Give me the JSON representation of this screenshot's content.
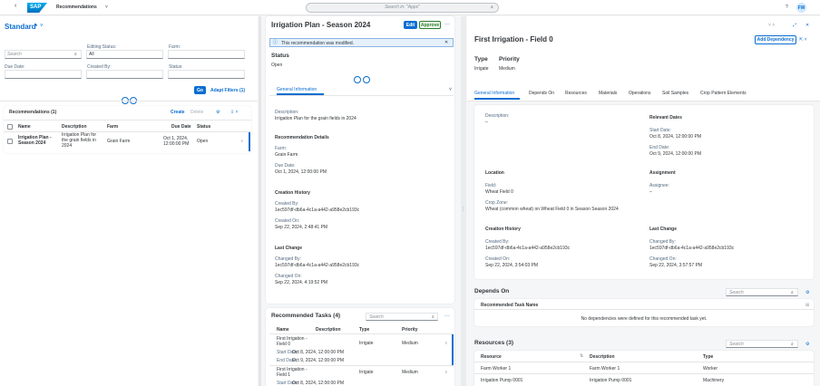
{
  "shell": {
    "app_title": "Recommendations",
    "search_placeholder": "Search in: \"Apps\"",
    "avatar": "FW"
  },
  "list_report": {
    "variant": "Standard",
    "variant_modified": "*",
    "search_placeholder": "Search",
    "filters": [
      {
        "label": "Editing Status:",
        "value": "All"
      },
      {
        "label": "Farm:"
      },
      {
        "label": "Due Date:"
      },
      {
        "label": "Created By:"
      },
      {
        "label": "Status:"
      }
    ],
    "go": "Go",
    "adapt_filters": "Adapt Filters (1)",
    "table": {
      "title": "Recommendations (1)",
      "actions": [
        "Create",
        "Delete"
      ],
      "columns": [
        "Name",
        "Description",
        "Farm",
        "Due Date",
        "Status"
      ],
      "rows": [
        [
          "Irrigation Plan - Season 2024",
          "Irrigation Plan for the grain fields in 2024",
          "Grain Farm",
          "Oct 1, 2024, 12:00:00 PM",
          "Open"
        ]
      ]
    }
  },
  "object_page": {
    "title": "Irrigation Plan - Season 2024",
    "actions": [
      "Edit",
      "Approve"
    ],
    "message": "This recommendation was modified.",
    "status_label": "Status",
    "status_value": "Open",
    "tab": "General Information",
    "description": {
      "label": "Description:",
      "value": "Irrigation Plan for the grain fields in 2024"
    },
    "sections": [
      {
        "title": "Recommendation Details",
        "fields": [
          {
            "label": "Farm:",
            "value": "Grain Farm"
          },
          {
            "label": "Due Date:",
            "value": "Oct 1, 2024, 12:00:00 PM"
          }
        ]
      },
      {
        "title": "Creation History",
        "fields": [
          {
            "label": "Created By:",
            "value": "1ec597df-db6a-4c1a-a442-a958e2cb193c"
          },
          {
            "label": "Created On:",
            "value": "Sep 22, 2024, 2:48:41 PM"
          }
        ]
      },
      {
        "title": "Last Change",
        "fields": [
          {
            "label": "Changed By:",
            "value": "1ec597df-db6a-4c1a-a442-a958e2cb193c"
          },
          {
            "label": "Changed On:",
            "value": "Sep 22, 2024, 4:19:52 PM"
          }
        ]
      }
    ],
    "tasks": {
      "title": "Recommended Tasks (4)",
      "search_placeholder": "Search",
      "columns": [
        "Name",
        "Description",
        "Type",
        "Priority"
      ],
      "rows": [
        {
          "name": "First Irrigation - Field 0",
          "start_label": "Start Date:",
          "start": "Oct 8, 2024, 12:00:00 PM",
          "end_label": "End Date:",
          "end": "Oct 9, 2024, 12:00:00 PM",
          "type": "Irrigate",
          "priority": "Medium"
        },
        {
          "name": "First Irrigation - Field 1",
          "start_label": "Start Date:",
          "start": "Oct 8, 2024, 12:00:00 PM",
          "type": "Irrigate",
          "priority": "Medium"
        }
      ]
    }
  },
  "detail": {
    "title": "First Irrigation - Field 0",
    "add_dependency": "Add Dependency",
    "header_fields": [
      {
        "label": "Type",
        "value": "Irrigate"
      },
      {
        "label": "Priority",
        "value": "Medium"
      }
    ],
    "tabs": [
      "General Information",
      "Depends On",
      "Resources",
      "Materials",
      "Operations",
      "Soil Samples",
      "Crop Pattern Elements"
    ],
    "description": {
      "label": "Description:",
      "value": "–"
    },
    "groups": [
      {
        "title": "Relevant Dates",
        "fields": [
          {
            "label": "Start Date:",
            "value": "Oct 8, 2024, 12:00:00 PM"
          },
          {
            "label": "End Date:",
            "value": "Oct 9, 2024, 12:00:00 PM"
          }
        ]
      },
      {
        "title": "Location",
        "fields": [
          {
            "label": "Field:",
            "value": "Wheat Field 0"
          },
          {
            "label": "Crop Zone:",
            "value": "Wheat (common wheat) on Wheat Field 0 in Season Season 2024"
          }
        ]
      },
      {
        "title": "Assignment",
        "fields": [
          {
            "label": "Assignee:",
            "value": "–"
          }
        ]
      },
      {
        "title": "Creation History",
        "fields": [
          {
            "label": "Created By:",
            "value": "1ec597df-db6a-4c1a-a442-a958e2cb193c"
          },
          {
            "label": "Created On:",
            "value": "Sep 22, 2024, 3:54:03 PM"
          }
        ]
      },
      {
        "title": "Last Change",
        "fields": [
          {
            "label": "Changed By:",
            "value": "1ec597df-db6a-4c1a-a442-a958e2cb193c"
          },
          {
            "label": "Changed On:",
            "value": "Sep 22, 2024, 3:57:57 PM"
          }
        ]
      }
    ],
    "depends_on": {
      "title": "Depends On",
      "search_placeholder": "Search",
      "column": "Recommended Task Name",
      "empty": "No dependencies were defined for this recommended task yet."
    },
    "resources": {
      "title": "Resources (3)",
      "search_placeholder": "Search",
      "columns": [
        "Resource",
        "Description",
        "Type"
      ],
      "rows": [
        [
          "Farm Worker 1",
          "Farm Worker 1",
          "Worker"
        ],
        [
          "Irrigation Pump 0001",
          "Irrigation Pump 0001",
          "Machinery"
        ]
      ]
    }
  }
}
